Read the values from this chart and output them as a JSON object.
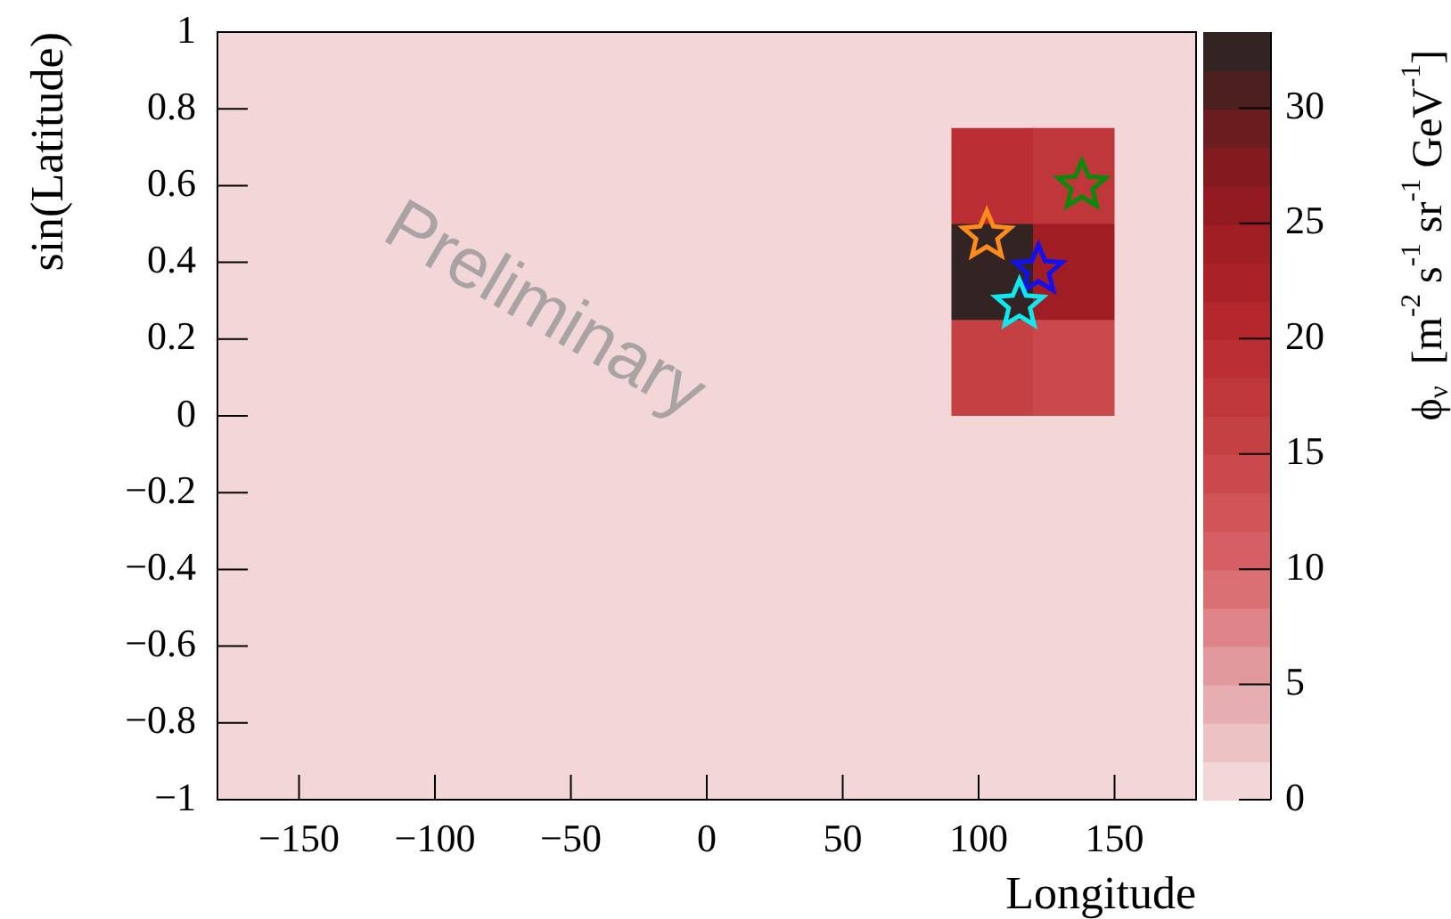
{
  "chart_data": {
    "type": "heatmap",
    "xlabel": "Longitude",
    "ylabel": "sin(Latitude)",
    "clabel": "ϕ$_{ν}$  [m$^{-2}$ s$^{-1}$ sr$^{-1}$ GeV$^{-1}$]",
    "annotations": [
      "Preliminary"
    ],
    "xlim": [
      -180,
      180
    ],
    "xticks": [
      -150,
      -100,
      -50,
      0,
      50,
      100,
      150
    ],
    "ylim": [
      -1,
      1
    ],
    "yticks": [
      -1,
      -0.8,
      -0.6,
      -0.4,
      -0.2,
      0,
      0.2,
      0.4,
      0.6,
      0.8,
      1
    ],
    "clim": [
      0,
      33.3
    ],
    "cticks": [
      0,
      5,
      10,
      15,
      20,
      25,
      30
    ],
    "cells": [
      [
        0,
        0,
        0,
        0,
        0,
        0,
        0,
        0,
        0,
        0,
        0,
        0
      ],
      [
        0,
        0,
        0,
        0,
        0,
        0,
        0,
        0,
        0,
        19,
        17,
        0
      ],
      [
        0,
        0,
        0,
        0,
        0,
        0,
        0,
        0,
        0,
        33,
        24,
        0
      ],
      [
        0,
        0,
        0,
        0,
        0,
        0,
        0,
        0,
        0,
        16,
        14,
        0
      ],
      [
        0,
        0,
        0,
        0,
        0,
        0,
        0,
        0,
        0,
        0,
        0,
        0
      ],
      [
        0,
        0,
        0,
        0,
        0,
        0,
        0,
        0,
        0,
        0,
        0,
        0
      ],
      [
        0,
        0,
        0,
        0,
        0,
        0,
        0,
        0,
        0,
        0,
        0,
        0
      ],
      [
        0,
        0,
        0,
        0,
        0,
        0,
        0,
        0,
        0,
        0,
        0,
        0
      ]
    ],
    "marker": "star",
    "series": [
      {
        "type": "scatter",
        "color": "#ff8c1a",
        "x": [
          103
        ],
        "values": [
          0.47
        ]
      },
      {
        "type": "scatter",
        "color": "#0a8a0a",
        "x": [
          138
        ],
        "values": [
          0.6
        ]
      },
      {
        "type": "scatter",
        "color": "#1010f0",
        "x": [
          122
        ],
        "values": [
          0.38
        ]
      },
      {
        "type": "scatter",
        "color": "#10e8f0",
        "x": [
          115
        ],
        "values": [
          0.29
        ]
      }
    ]
  }
}
